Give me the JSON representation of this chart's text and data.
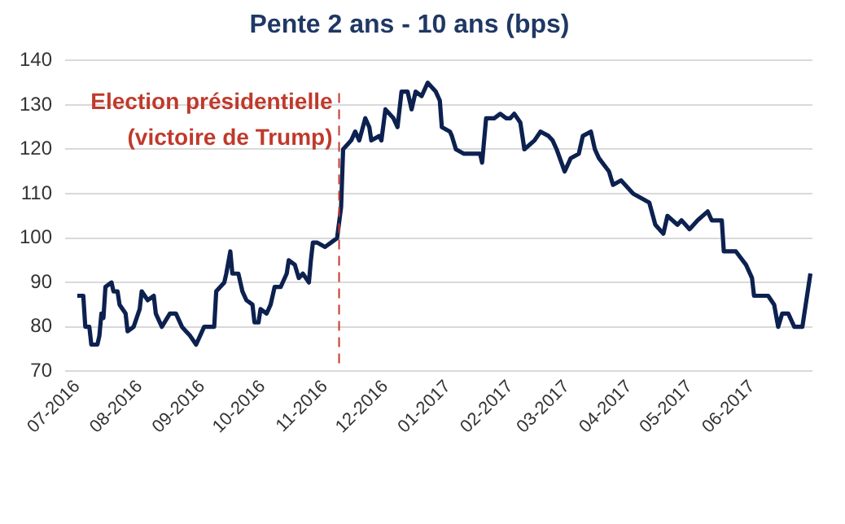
{
  "chart_data": {
    "type": "line",
    "title": "Pente 2 ans - 10 ans (bps)",
    "x": [
      "2016-07-01",
      "2016-07-04",
      "2016-07-05",
      "2016-07-07",
      "2016-07-08",
      "2016-07-11",
      "2016-07-12",
      "2016-07-13",
      "2016-07-14",
      "2016-07-15",
      "2016-07-18",
      "2016-07-19",
      "2016-07-21",
      "2016-07-22",
      "2016-07-25",
      "2016-07-26",
      "2016-07-29",
      "2016-08-01",
      "2016-08-02",
      "2016-08-05",
      "2016-08-08",
      "2016-08-09",
      "2016-08-12",
      "2016-08-16",
      "2016-08-19",
      "2016-08-22",
      "2016-08-24",
      "2016-08-26",
      "2016-08-29",
      "2016-08-31",
      "2016-09-02",
      "2016-09-06",
      "2016-09-07",
      "2016-09-08",
      "2016-09-12",
      "2016-09-13",
      "2016-09-15",
      "2016-09-16",
      "2016-09-19",
      "2016-09-21",
      "2016-09-23",
      "2016-09-26",
      "2016-09-27",
      "2016-09-29",
      "2016-09-30",
      "2016-10-03",
      "2016-10-05",
      "2016-10-07",
      "2016-10-10",
      "2016-10-13",
      "2016-10-14",
      "2016-10-17",
      "2016-10-19",
      "2016-10-21",
      "2016-10-24",
      "2016-10-25",
      "2016-10-26",
      "2016-10-28",
      "2016-11-01",
      "2016-11-04",
      "2016-11-07",
      "2016-11-09",
      "2016-11-10",
      "2016-11-14",
      "2016-11-16",
      "2016-11-18",
      "2016-11-21",
      "2016-11-23",
      "2016-11-24",
      "2016-11-28",
      "2016-11-29",
      "2016-12-01",
      "2016-12-05",
      "2016-12-07",
      "2016-12-09",
      "2016-12-12",
      "2016-12-14",
      "2016-12-16",
      "2016-12-19",
      "2016-12-22",
      "2016-12-26",
      "2016-12-28",
      "2016-12-29",
      "2017-01-02",
      "2017-01-03",
      "2017-01-05",
      "2017-01-09",
      "2017-01-13",
      "2017-01-17",
      "2017-01-18",
      "2017-01-20",
      "2017-01-24",
      "2017-01-27",
      "2017-01-30",
      "2017-02-01",
      "2017-02-03",
      "2017-02-06",
      "2017-02-08",
      "2017-02-13",
      "2017-02-16",
      "2017-02-20",
      "2017-02-22",
      "2017-02-24",
      "2017-02-28",
      "2017-03-03",
      "2017-03-07",
      "2017-03-09",
      "2017-03-13",
      "2017-03-15",
      "2017-03-17",
      "2017-03-22",
      "2017-03-24",
      "2017-03-28",
      "2017-04-03",
      "2017-04-07",
      "2017-04-11",
      "2017-04-14",
      "2017-04-18",
      "2017-04-20",
      "2017-04-25",
      "2017-04-27",
      "2017-05-01",
      "2017-05-05",
      "2017-05-10",
      "2017-05-12",
      "2017-05-17",
      "2017-05-18",
      "2017-05-24",
      "2017-05-29",
      "2017-06-01",
      "2017-06-02",
      "2017-06-06",
      "2017-06-09",
      "2017-06-12",
      "2017-06-14",
      "2017-06-16",
      "2017-06-19",
      "2017-06-22",
      "2017-06-26",
      "2017-06-28",
      "2017-06-30"
    ],
    "series": [
      {
        "color": "#0d2150",
        "values": [
          87,
          87,
          80,
          80,
          76,
          76,
          78,
          83,
          82,
          89,
          90,
          88,
          88,
          85,
          83,
          79,
          80,
          84,
          88,
          86,
          87,
          83,
          80,
          83,
          83,
          80,
          79,
          78,
          76,
          78,
          80,
          80,
          80,
          88,
          90,
          92,
          97,
          92,
          92,
          88,
          86,
          85,
          81,
          81,
          84,
          83,
          85,
          89,
          89,
          92,
          95,
          94,
          91,
          92,
          90,
          95,
          99,
          99,
          98,
          99,
          100,
          107,
          120,
          122,
          124,
          122,
          127,
          125,
          122,
          123,
          122,
          129,
          127,
          125,
          133,
          133,
          129,
          133,
          132,
          135,
          133,
          131,
          125,
          124,
          123,
          120,
          119,
          119,
          119,
          117,
          127,
          127,
          128,
          127,
          127,
          128,
          126,
          120,
          122,
          124,
          123,
          122,
          120,
          115,
          118,
          119,
          123,
          124,
          120,
          118,
          115,
          112,
          113,
          110,
          109,
          108,
          103,
          101,
          105,
          103,
          104,
          102,
          104,
          106,
          104,
          104,
          97,
          97,
          94,
          91,
          87,
          87,
          87,
          85,
          80,
          83,
          83,
          80,
          80,
          86,
          92
        ]
      }
    ],
    "xlim": [
      "2016-06-25",
      "2017-07-01"
    ],
    "xticks": [
      {
        "value": "2016-07-01",
        "label": "07-2016"
      },
      {
        "value": "2016-08-01",
        "label": "08-2016"
      },
      {
        "value": "2016-09-01",
        "label": "09-2016"
      },
      {
        "value": "2016-10-01",
        "label": "10-2016"
      },
      {
        "value": "2016-11-01",
        "label": "11-2016"
      },
      {
        "value": "2016-12-01",
        "label": "12-2016"
      },
      {
        "value": "2017-01-01",
        "label": "01-2017"
      },
      {
        "value": "2017-02-01",
        "label": "02-2017"
      },
      {
        "value": "2017-03-01",
        "label": "03-2017"
      },
      {
        "value": "2017-04-01",
        "label": "04-2017"
      },
      {
        "value": "2017-05-01",
        "label": "05-2017"
      },
      {
        "value": "2017-06-01",
        "label": "06-2017"
      }
    ],
    "ylim": [
      70,
      140
    ],
    "yticks": [
      70,
      80,
      90,
      100,
      110,
      120,
      130,
      140
    ],
    "grid": "y",
    "legend": false,
    "marker": "none",
    "line_style": "solid",
    "ref_lines": [
      {
        "axis": "x",
        "value": "2016-11-08",
        "label": "Election présidentielle\n(victoire de Trump)",
        "color": "#c0392b",
        "line_style": "dashed"
      }
    ]
  }
}
